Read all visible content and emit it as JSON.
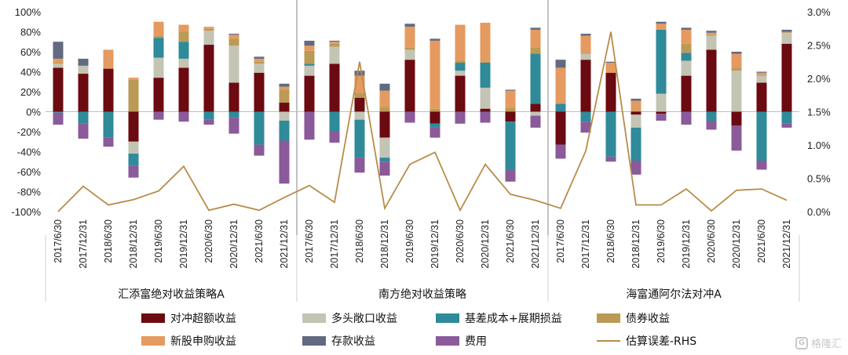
{
  "chart_data": {
    "type": "bar",
    "stacked": true,
    "groups": [
      {
        "name": "汇添富绝对收益策略A"
      },
      {
        "name": "南方绝对收益策略"
      },
      {
        "name": "海富通阿尔法对冲A"
      }
    ],
    "categories": [
      "2017/6/30",
      "2017/12/31",
      "2018/6/30",
      "2018/12/31",
      "2019/6/30",
      "2019/12/31",
      "2020/6/30",
      "2020/12/31",
      "2021/6/30",
      "2021/12/31"
    ],
    "left_axis": {
      "min": -1.0,
      "max": 1.0,
      "ticks": [
        "100%",
        "80%",
        "60%",
        "40%",
        "20%",
        "0%",
        "-20%",
        "-40%",
        "-60%",
        "-80%",
        "-100%"
      ]
    },
    "right_axis": {
      "min": 0.0,
      "max": 0.03,
      "ticks": [
        "3.0%",
        "2.5%",
        "2.0%",
        "1.5%",
        "1.0%",
        "0.5%",
        "0.0%"
      ]
    },
    "series": [
      {
        "name": "对冲超额收益",
        "color": "#6b0a10",
        "values": [
          [
            0.44,
            0.38,
            0.43,
            -0.3,
            0.34,
            0.44,
            0.67,
            0.29,
            0.39,
            0.09
          ],
          [
            0.36,
            0.48,
            0.14,
            -0.26,
            0.52,
            -0.12,
            0.36,
            0.03,
            -0.1,
            0.08
          ],
          [
            -0.33,
            0.52,
            0.39,
            -0.03,
            -0.02,
            0.36,
            0.62,
            -0.14,
            0.29,
            0.68
          ]
        ]
      },
      {
        "name": "多头敞口收益",
        "color": "#c4c4b4",
        "values": [
          [
            0.04,
            0.08,
            0,
            -0.12,
            0.2,
            0.09,
            0.14,
            0.37,
            0.09,
            -0.09
          ],
          [
            0.1,
            0.17,
            -0.08,
            -0.2,
            0.1,
            0,
            0.05,
            0.21,
            0,
            -0.04
          ],
          [
            0,
            0.06,
            0,
            -0.13,
            0.18,
            0.15,
            0.14,
            0.41,
            0.07,
            0.11
          ]
        ]
      },
      {
        "name": "基差成本+展期损益",
        "color": "#2f8a99",
        "values": [
          [
            -0.01,
            -0.12,
            -0.26,
            -0.12,
            0.2,
            0.17,
            -0.08,
            -0.06,
            -0.33,
            -0.2
          ],
          [
            0.02,
            -0.2,
            -0.38,
            -0.04,
            0,
            -0.04,
            0.08,
            0.25,
            -0.48,
            0.5
          ],
          [
            0.08,
            -0.1,
            -0.45,
            -0.33,
            0.64,
            0.08,
            -0.09,
            0,
            -0.49,
            -0.12
          ]
        ]
      },
      {
        "name": "债券收益",
        "color": "#bb9a55",
        "values": [
          [
            0.01,
            0,
            0.01,
            0.32,
            0.02,
            0.1,
            0.02,
            0.07,
            0.02,
            0.13
          ],
          [
            0.13,
            0.03,
            0.05,
            0.05,
            0.02,
            0.03,
            0.02,
            0.01,
            0.04,
            0.06
          ],
          [
            0,
            0.01,
            0,
            0.01,
            0,
            0.09,
            0.01,
            0.03,
            0.01,
            0.01
          ]
        ]
      },
      {
        "name": "新股申购收益",
        "color": "#e59a60",
        "values": [
          [
            0.04,
            0,
            0.18,
            0.02,
            0.14,
            0.07,
            0.02,
            0.04,
            0.03,
            0.03
          ],
          [
            0.05,
            0.02,
            0.17,
            0.16,
            0.21,
            0.68,
            0.36,
            0.39,
            0.17,
            0.18
          ],
          [
            0.36,
            0.17,
            0.1,
            0.1,
            0.06,
            0.14,
            0.02,
            0.14,
            0.02,
            0
          ]
        ]
      },
      {
        "name": "存款收益",
        "color": "#626a80",
        "values": [
          [
            0.17,
            0.07,
            0,
            0,
            0,
            0,
            0,
            0.01,
            0.02,
            0.03
          ],
          [
            0.05,
            0.01,
            0.05,
            0.07,
            0.03,
            0.02,
            0,
            0,
            0.01,
            0.02
          ],
          [
            0.08,
            0.02,
            0.01,
            0.02,
            0.02,
            0.02,
            0.02,
            0.02,
            0.01,
            0.02
          ]
        ]
      },
      {
        "name": "费用",
        "color": "#8a5a9a",
        "values": [
          [
            -0.12,
            -0.15,
            -0.09,
            -0.12,
            -0.08,
            -0.1,
            -0.05,
            -0.16,
            -0.11,
            -0.43
          ],
          [
            -0.28,
            -0.11,
            -0.15,
            -0.14,
            -0.11,
            -0.1,
            -0.12,
            -0.11,
            -0.12,
            -0.12
          ],
          [
            -0.14,
            -0.11,
            -0.05,
            -0.14,
            -0.07,
            -0.13,
            -0.09,
            -0.25,
            -0.09,
            -0.04
          ]
        ]
      }
    ],
    "line": {
      "name": "估算误差-RHS",
      "color": "#b88c4a",
      "axis": "right",
      "values": [
        [
          0.0,
          0.0038,
          0.001,
          0.0018,
          0.0031,
          0.0068,
          0.0002,
          0.0011,
          0.0002,
          0.0021
        ],
        [
          0.0039,
          0.0014,
          0.0225,
          0.0005,
          0.0071,
          0.0089,
          0.0002,
          0.0071,
          0.0026,
          0.0017
        ],
        [
          0.0005,
          0.0091,
          0.027,
          0.001,
          0.001,
          0.0034,
          0.0001,
          0.0032,
          0.0034,
          0.0017
        ]
      ]
    },
    "legend": {
      "position": "bottom"
    }
  },
  "watermark": {
    "icon": "G",
    "text": "格隆汇"
  }
}
